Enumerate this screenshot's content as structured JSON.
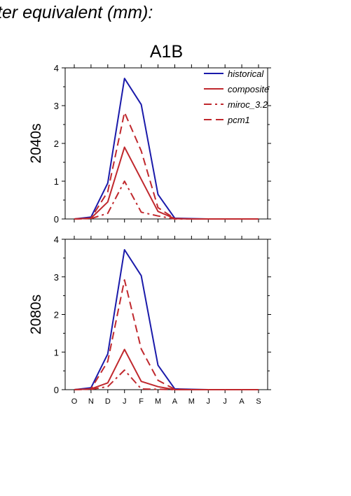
{
  "header": {
    "title": "ter equivalent (mm):"
  },
  "chart_data": [
    {
      "type": "line",
      "scenario_title": "A1B",
      "row_label": "2040s",
      "xlabel": "",
      "ylabel": "",
      "categories": [
        "O",
        "N",
        "D",
        "J",
        "F",
        "M",
        "A",
        "M",
        "J",
        "J",
        "A",
        "S"
      ],
      "ylim": [
        0,
        4
      ],
      "yticks": [
        "0",
        "1",
        "2",
        "3",
        "4"
      ],
      "legend": "top-right",
      "series": [
        {
          "name": "historical",
          "color": "#1a1aaa",
          "dash": "solid",
          "values": [
            0,
            0.05,
            0.95,
            3.72,
            3.03,
            0.65,
            0.02,
            0.01,
            0,
            0,
            0,
            0
          ]
        },
        {
          "name": "composite",
          "color": "#c0282d",
          "dash": "solid",
          "values": [
            0,
            0.02,
            0.45,
            1.9,
            1.05,
            0.2,
            0.01,
            0,
            0,
            0,
            0,
            0
          ]
        },
        {
          "name": "miroc_3.2",
          "color": "#c0282d",
          "dash": "dashdot",
          "values": [
            0,
            0.01,
            0.15,
            1.0,
            0.18,
            0.08,
            0,
            0,
            0,
            0,
            0,
            0
          ]
        },
        {
          "name": "pcm1",
          "color": "#c0282d",
          "dash": "dash",
          "values": [
            0,
            0.02,
            0.72,
            2.82,
            1.8,
            0.3,
            0.01,
            0,
            0,
            0,
            0,
            0
          ]
        }
      ]
    },
    {
      "type": "line",
      "scenario_title": "",
      "row_label": "2080s",
      "xlabel": "",
      "ylabel": "",
      "categories": [
        "O",
        "N",
        "D",
        "J",
        "F",
        "M",
        "A",
        "M",
        "J",
        "J",
        "A",
        "S"
      ],
      "ylim": [
        0,
        4
      ],
      "yticks": [
        "0",
        "1",
        "2",
        "3",
        "4"
      ],
      "series": [
        {
          "name": "historical",
          "color": "#1a1aaa",
          "dash": "solid",
          "values": [
            0,
            0.05,
            0.95,
            3.72,
            3.03,
            0.65,
            0.02,
            0.01,
            0,
            0,
            0,
            0
          ]
        },
        {
          "name": "composite",
          "color": "#c0282d",
          "dash": "solid",
          "values": [
            0,
            0.02,
            0.18,
            1.07,
            0.22,
            0.08,
            0,
            0,
            0,
            0,
            0,
            0
          ]
        },
        {
          "name": "miroc_3.2",
          "color": "#c0282d",
          "dash": "dashdot",
          "values": [
            0,
            0.01,
            0.08,
            0.52,
            0.02,
            0.01,
            0,
            0,
            0,
            0,
            0,
            0
          ]
        },
        {
          "name": "pcm1",
          "color": "#c0282d",
          "dash": "dash",
          "values": [
            0,
            0.02,
            0.75,
            2.92,
            1.08,
            0.25,
            0.01,
            0,
            0,
            0,
            0,
            0
          ]
        }
      ]
    }
  ]
}
